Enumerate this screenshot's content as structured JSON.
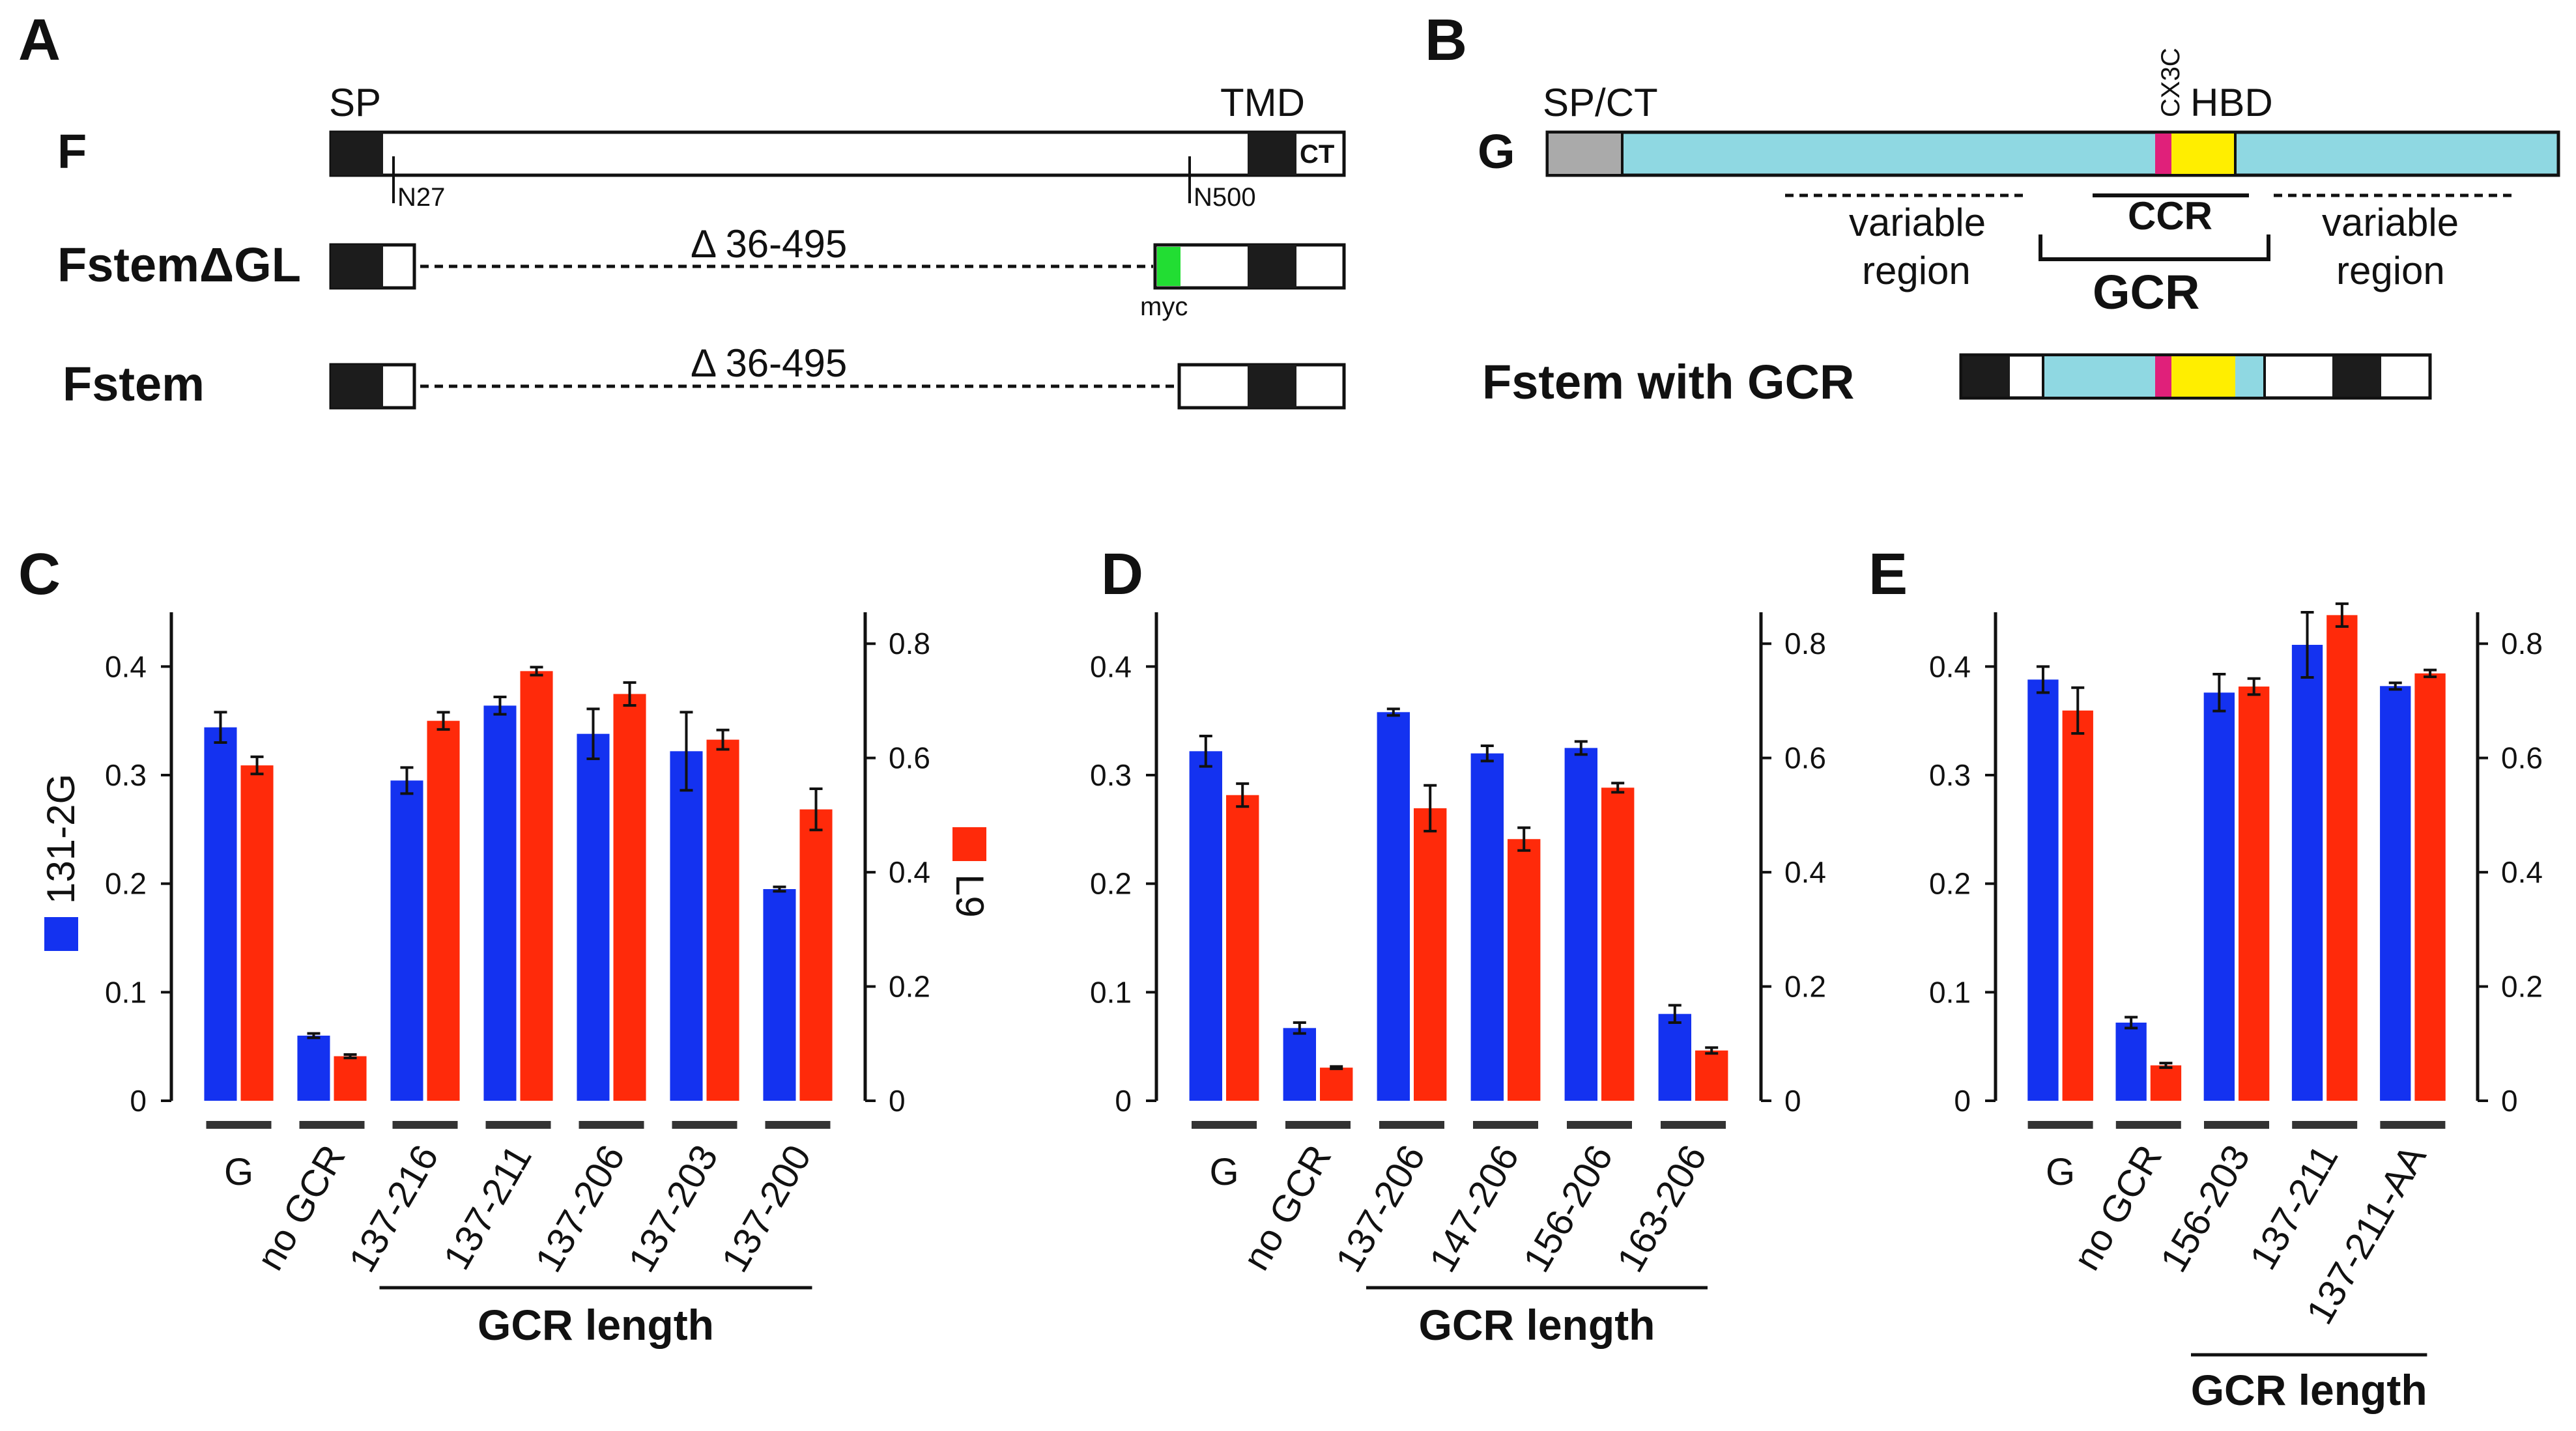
{
  "panel_labels": {
    "a": "A",
    "b": "B",
    "c": "C",
    "d": "D",
    "e": "E"
  },
  "diagram_a": {
    "rows": [
      "F",
      "FstemΔGL",
      "Fstem"
    ],
    "sp": "SP",
    "tmd": "TMD",
    "ct": "CT",
    "n27": "N27",
    "n500": "N500",
    "deletion1": "Δ 36-495",
    "deletion2": "Δ 36-495",
    "myc": "myc"
  },
  "diagram_b": {
    "g_label": "G",
    "spct": "SP/CT",
    "cx3c": "CX3C",
    "hbd": "HBD",
    "variable_left_1": "variable",
    "variable_left_2": "region",
    "variable_right_1": "variable",
    "variable_right_2": "region",
    "ccr": "CCR",
    "gcr": "GCR",
    "fstem_gcr": "Fstem with GCR"
  },
  "colors": {
    "blue": "#1432f0",
    "red": "#ff2a0a",
    "cyan": "#8fd8e2",
    "magenta": "#e0207a",
    "yellow": "#ffee00",
    "green": "#22dd33",
    "gray": "#aaaaaa",
    "black": "#1c1c1c"
  },
  "legend": {
    "left": "131-2G",
    "right": "L9"
  },
  "chart_data": [
    {
      "id": "C",
      "type": "bar",
      "categories": [
        "G",
        "no GCR",
        "137-216",
        "137-211",
        "137-206",
        "137-203",
        "137-200"
      ],
      "series": [
        {
          "name": "131-2G",
          "axis": "left",
          "values": [
            0.344,
            0.06,
            0.295,
            0.364,
            0.338,
            0.322,
            0.195
          ],
          "errors": [
            0.014,
            0.002,
            0.012,
            0.008,
            0.023,
            0.036,
            0.002
          ]
        },
        {
          "name": "L9",
          "axis": "right",
          "values": [
            0.587,
            0.078,
            0.665,
            0.752,
            0.712,
            0.632,
            0.51
          ],
          "errors": [
            0.015,
            0.003,
            0.015,
            0.007,
            0.02,
            0.017,
            0.036
          ]
        }
      ],
      "y_left": {
        "ylim": [
          0,
          0.45
        ],
        "ticks": [
          "0",
          "0.1",
          "0.2",
          "0.3",
          "0.4"
        ]
      },
      "y_right": {
        "ylim": [
          0,
          0.855
        ],
        "ticks": [
          "0",
          "0.2",
          "0.4",
          "0.6",
          "0.8"
        ]
      },
      "xlabel": "GCR length",
      "xlabel_span": [
        2,
        6
      ]
    },
    {
      "id": "D",
      "type": "bar",
      "categories": [
        "G",
        "no GCR",
        "137-206",
        "147-206",
        "156-206",
        "163-206"
      ],
      "series": [
        {
          "name": "131-2G",
          "axis": "left",
          "values": [
            0.322,
            0.067,
            0.358,
            0.32,
            0.325,
            0.08
          ],
          "errors": [
            0.014,
            0.005,
            0.003,
            0.007,
            0.006,
            0.008
          ]
        },
        {
          "name": "L9",
          "axis": "right",
          "values": [
            0.535,
            0.058,
            0.512,
            0.458,
            0.548,
            0.088
          ],
          "errors": [
            0.02,
            0.002,
            0.04,
            0.02,
            0.008,
            0.005
          ]
        }
      ],
      "y_left": {
        "ylim": [
          0,
          0.45
        ],
        "ticks": [
          "0",
          "0.1",
          "0.2",
          "0.3",
          "0.4"
        ]
      },
      "y_right": {
        "ylim": [
          0,
          0.855
        ],
        "ticks": [
          "0",
          "0.2",
          "0.4",
          "0.6",
          "0.8"
        ]
      },
      "xlabel": "GCR length",
      "xlabel_span": [
        2,
        5
      ]
    },
    {
      "id": "E",
      "type": "bar",
      "categories": [
        "G",
        "no GCR",
        "156-203",
        "137-211",
        "137-211-AA"
      ],
      "series": [
        {
          "name": "131-2G",
          "axis": "left",
          "values": [
            0.388,
            0.072,
            0.376,
            0.42,
            0.382
          ],
          "errors": [
            0.012,
            0.005,
            0.017,
            0.03,
            0.003
          ]
        },
        {
          "name": "L9",
          "axis": "right",
          "values": [
            0.683,
            0.062,
            0.725,
            0.85,
            0.748
          ],
          "errors": [
            0.04,
            0.004,
            0.014,
            0.02,
            0.006
          ]
        }
      ],
      "y_left": {
        "ylim": [
          0,
          0.45
        ],
        "ticks": [
          "0",
          "0.1",
          "0.2",
          "0.3",
          "0.4"
        ]
      },
      "y_right": {
        "ylim": [
          0,
          0.855
        ],
        "ticks": [
          "0",
          "0.2",
          "0.4",
          "0.6",
          "0.8"
        ]
      },
      "xlabel": "GCR length",
      "xlabel_span": [
        2,
        4
      ]
    }
  ]
}
